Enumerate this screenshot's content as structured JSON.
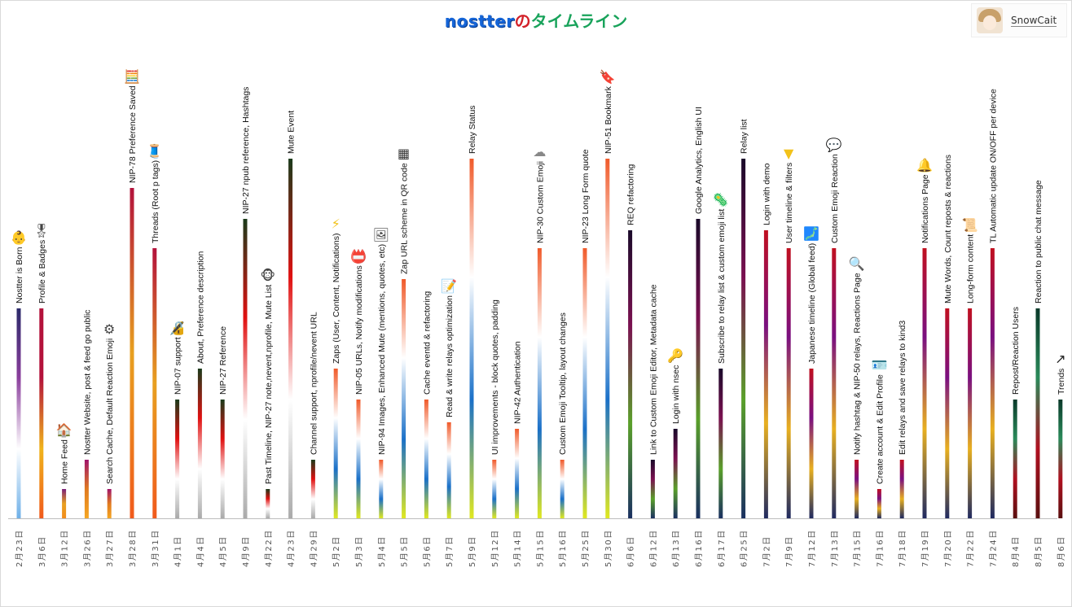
{
  "title": {
    "logo": "nostter",
    "no": "の",
    "rest": "タイムライン"
  },
  "user": {
    "name": "SnowCait"
  },
  "chart_data": {
    "type": "timeline",
    "title": "nostterのタイムライン",
    "events": [
      {
        "date": "2月23日",
        "label": "Nostter is Born",
        "h": 258,
        "icon": "baby-icon",
        "colors": [
          "#2b2a6a",
          "#8a3e9c",
          "#ffffff",
          "#6fb0e8"
        ]
      },
      {
        "date": "3月6日",
        "label": "Profile & Badges",
        "h": 258,
        "icon": "medal-icon",
        "colors": [
          "#b3123b",
          "#b3123b",
          "#f0b41c",
          "#f05a1c"
        ]
      },
      {
        "date": "3月12日",
        "label": "Home Feed",
        "h": 36,
        "icon": "house-icon",
        "colors": [
          "#7a1f7a",
          "#e8a020",
          "#f28c1c"
        ]
      },
      {
        "date": "3月26日",
        "label": "Nostter Website, post & feed go public",
        "h": 72,
        "icon": "",
        "colors": [
          "#a0146a",
          "#e07a20",
          "#f5a623"
        ]
      },
      {
        "date": "3月27日",
        "label": "Search Cache, Default Reaction Emoji",
        "h": 36,
        "icon": "gear-icon",
        "colors": [
          "#a0146a",
          "#e07a20",
          "#f5a623"
        ]
      },
      {
        "date": "3月28日",
        "label": "NIP-78 Preference Saved",
        "h": 406,
        "icon": "abacus-icon",
        "colors": [
          "#b3123b",
          "#e8a020",
          "#f05a1c"
        ]
      },
      {
        "date": "3月31日",
        "label": "Threads (Root p tags)",
        "h": 332,
        "icon": "spool-icon",
        "colors": [
          "#b3123b",
          "#e8a020",
          "#f05a1c"
        ]
      },
      {
        "date": "4月1日",
        "label": "NIP-07 support",
        "h": 146,
        "icon": "lock-pen-icon",
        "colors": [
          "#1a3a1a",
          "#e01010",
          "#ffffff",
          "#aaaaaa"
        ]
      },
      {
        "date": "4月4日",
        "label": "About, Preference description",
        "h": 184,
        "icon": "",
        "colors": [
          "#1a3a1a",
          "#e01010",
          "#ffffff",
          "#aaaaaa"
        ]
      },
      {
        "date": "4月5日",
        "label": "NIP-27 Reference",
        "h": 146,
        "icon": "",
        "colors": [
          "#1a3a1a",
          "#e01010",
          "#ffffff",
          "#aaaaaa"
        ]
      },
      {
        "date": "4月9日",
        "label": "NIP-27 npub reference, Hashtags",
        "h": 368,
        "icon": "",
        "colors": [
          "#1a3a1a",
          "#e01010",
          "#ffffff",
          "#aaaaaa"
        ]
      },
      {
        "date": "4月22日",
        "label": "Past Timeline, NIP-27 note,nevent,nprofile, Mute List",
        "h": 36,
        "icon": "monkey-icon",
        "colors": [
          "#1a3a1a",
          "#e01010",
          "#ffffff",
          "#aaaaaa"
        ]
      },
      {
        "date": "4月23日",
        "label": "Mute Event",
        "h": 442,
        "icon": "",
        "colors": [
          "#1a3a1a",
          "#e01010",
          "#ffffff",
          "#aaaaaa"
        ]
      },
      {
        "date": "4月29日",
        "label": "Channel support, nprofile/nevent URL",
        "h": 72,
        "icon": "",
        "colors": [
          "#1a3a1a",
          "#e01010",
          "#ffffff",
          "#aaaaaa"
        ]
      },
      {
        "date": "5月2日",
        "label": "Zaps (User, Content, Notifications)",
        "h": 184,
        "icon": "zap-icon",
        "colors": [
          "#f05a2a",
          "#ffffff",
          "#1a70c8",
          "#e0e820"
        ]
      },
      {
        "date": "5月3日",
        "label": "NIP-05 URLs, Notify modifications",
        "h": 146,
        "icon": "name-badge-icon",
        "colors": [
          "#f05a2a",
          "#ffffff",
          "#1a70c8",
          "#e0e820"
        ]
      },
      {
        "date": "5月4日",
        "label": "NIP-94 Images, Enhanced Mute (mentions, quotes, etc)",
        "h": 72,
        "icon": "picture-icon",
        "colors": [
          "#f05a2a",
          "#ffffff",
          "#1a70c8",
          "#e0e820"
        ]
      },
      {
        "date": "5月5日",
        "label": "Zap URL scheme in QR code",
        "h": 294,
        "icon": "qr-zap-icon",
        "colors": [
          "#f05a2a",
          "#ffffff",
          "#1a70c8",
          "#e0e820"
        ]
      },
      {
        "date": "5月6日",
        "label": "Cache eventd & refactoring",
        "h": 146,
        "icon": "",
        "colors": [
          "#f05a2a",
          "#ffffff",
          "#1a70c8",
          "#e0e820"
        ]
      },
      {
        "date": "5月7日",
        "label": "Read & write relays optimization",
        "h": 118,
        "icon": "memo-icon",
        "colors": [
          "#f05a2a",
          "#ffffff",
          "#1a70c8",
          "#e0e820"
        ]
      },
      {
        "date": "5月9日",
        "label": "Relay Status",
        "h": 442,
        "icon": "",
        "colors": [
          "#f05a2a",
          "#ffffff",
          "#1a70c8",
          "#e0e820"
        ]
      },
      {
        "date": "5月12日",
        "label": "UI improvements - block quotes, padding",
        "h": 72,
        "icon": "",
        "colors": [
          "#f05a2a",
          "#ffffff",
          "#1a70c8",
          "#e0e820"
        ]
      },
      {
        "date": "5月14日",
        "label": "NIP-42 Authentication",
        "h": 110,
        "icon": "",
        "colors": [
          "#f05a2a",
          "#ffffff",
          "#1a70c8",
          "#e0e820"
        ]
      },
      {
        "date": "5月15日",
        "label": "NIP-30 Custom Emoji",
        "h": 332,
        "icon": "cloud-icon",
        "colors": [
          "#f05a2a",
          "#ffffff",
          "#1a70c8",
          "#e0e820"
        ]
      },
      {
        "date": "5月16日",
        "label": "Custom Emoji Tooltip, layout changes",
        "h": 72,
        "icon": "",
        "colors": [
          "#f05a2a",
          "#ffffff",
          "#1a70c8",
          "#e0e820"
        ]
      },
      {
        "date": "5月25日",
        "label": "NIP-23 Long Form quote",
        "h": 332,
        "icon": "",
        "colors": [
          "#f05a2a",
          "#ffffff",
          "#1a70c8",
          "#e0e820"
        ]
      },
      {
        "date": "5月30日",
        "label": "NIP-51 Bookmark",
        "h": 442,
        "icon": "bookmark-icon",
        "colors": [
          "#f05a2a",
          "#ffffff",
          "#1a70c8",
          "#e0e820"
        ]
      },
      {
        "date": "6月6日",
        "label": "REQ refactoring",
        "h": 354,
        "icon": "",
        "colors": [
          "#1a0a2a",
          "#7a1050",
          "#5aa02a",
          "#1a3060"
        ]
      },
      {
        "date": "6月12日",
        "label": "Link to Custom Emoji Editor, Metadata cache",
        "h": 72,
        "icon": "",
        "colors": [
          "#1a0a2a",
          "#7a1050",
          "#5aa02a",
          "#1a3060"
        ]
      },
      {
        "date": "6月13日",
        "label": "Login with nsec",
        "h": 110,
        "icon": "key-icon",
        "colors": [
          "#1a0a2a",
          "#7a1050",
          "#5aa02a",
          "#1a3060"
        ]
      },
      {
        "date": "6月16日",
        "label": "Google Analytics, English UI",
        "h": 368,
        "icon": "",
        "colors": [
          "#1a0a2a",
          "#7a1050",
          "#5aa02a",
          "#1a3060"
        ]
      },
      {
        "date": "6月17日",
        "label": "Subscribe to relay list & custom emoji list",
        "h": 184,
        "icon": "virus-list-icon",
        "colors": [
          "#1a0a2a",
          "#7a1050",
          "#5aa02a",
          "#1a3060"
        ]
      },
      {
        "date": "6月25日",
        "label": "Relay list",
        "h": 442,
        "icon": "",
        "colors": [
          "#1a0a2a",
          "#7a1050",
          "#5aa02a",
          "#1a3060"
        ]
      },
      {
        "date": "7月2日",
        "label": "Login with demo",
        "h": 354,
        "icon": "",
        "colors": [
          "#c01020",
          "#7a1080",
          "#e8b020",
          "#202a60"
        ]
      },
      {
        "date": "7月9日",
        "label": "User timeline & filters",
        "h": 332,
        "icon": "funnel-icon",
        "colors": [
          "#c01020",
          "#7a1080",
          "#e8b020",
          "#202a60"
        ]
      },
      {
        "date": "7月12日",
        "label": "Japanese timeline (Global feed)",
        "h": 184,
        "icon": "japan-map-icon",
        "colors": [
          "#c01020",
          "#7a1080",
          "#e8b020",
          "#202a60"
        ]
      },
      {
        "date": "7月13日",
        "label": "Custom Emoji Reaction",
        "h": 332,
        "icon": "bubble-icon",
        "colors": [
          "#c01020",
          "#7a1080",
          "#e8b020",
          "#202a60"
        ]
      },
      {
        "date": "7月15日",
        "label": "Notify hashtag & NIP-50 relays, Reactions Page",
        "h": 72,
        "icon": "magnifier-icon",
        "colors": [
          "#c01020",
          "#7a1080",
          "#e8b020",
          "#202a60"
        ]
      },
      {
        "date": "7月16日",
        "label": "Create account & Edit Profile",
        "h": 36,
        "icon": "id-card-icon",
        "colors": [
          "#c01020",
          "#7a1080",
          "#e8b020",
          "#202a60"
        ]
      },
      {
        "date": "7月18日",
        "label": "Edit relays and save relays to kind3",
        "h": 72,
        "icon": "",
        "colors": [
          "#c01020",
          "#7a1080",
          "#e8b020",
          "#202a60"
        ]
      },
      {
        "date": "7月19日",
        "label": "Notifications Page",
        "h": 332,
        "icon": "bell-icon",
        "colors": [
          "#c01020",
          "#7a1080",
          "#e8b020",
          "#202a60"
        ]
      },
      {
        "date": "7月20日",
        "label": "Mute Words, Count reposts & reactions",
        "h": 258,
        "icon": "",
        "colors": [
          "#c01020",
          "#7a1080",
          "#e8b020",
          "#202a60"
        ]
      },
      {
        "date": "7月22日",
        "label": "Long-form content",
        "h": 258,
        "icon": "scroll-icon",
        "colors": [
          "#c01020",
          "#7a1080",
          "#e8b020",
          "#202a60"
        ]
      },
      {
        "date": "7月24日",
        "label": "TL Automatic update ON/OFF per device",
        "h": 332,
        "icon": "",
        "colors": [
          "#c01020",
          "#7a1080",
          "#e8b020",
          "#202a60"
        ]
      },
      {
        "date": "8月4日",
        "label": "Repost/Reaction Users",
        "h": 146,
        "icon": "",
        "colors": [
          "#0a3a2a",
          "#2a8a5a",
          "#b01020",
          "#5a1010"
        ]
      },
      {
        "date": "8月5日",
        "label": "Reaction to public chat message",
        "h": 258,
        "icon": "",
        "colors": [
          "#0a3a2a",
          "#2a8a5a",
          "#b01020",
          "#5a1010"
        ]
      },
      {
        "date": "8月6日",
        "label": "Trends",
        "h": 146,
        "icon": "trend-icon",
        "colors": [
          "#0a3a2a",
          "#2a8a5a",
          "#b01020",
          "#5a1010"
        ]
      }
    ]
  }
}
